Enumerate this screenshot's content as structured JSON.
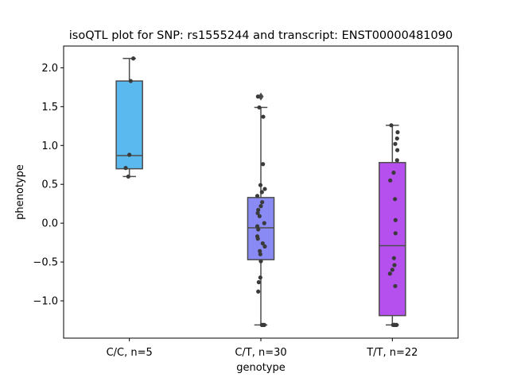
{
  "chart_data": {
    "type": "box",
    "title": "isoQTL plot for SNP: rs1555244 and transcript: ENST00000481090",
    "xlabel": "genotype",
    "ylabel": "phenotype",
    "ylim": [
      -1.48,
      2.28
    ],
    "yticks": [
      -1.0,
      -0.5,
      0.0,
      0.5,
      1.0,
      1.5,
      2.0
    ],
    "ytick_labels": [
      "−1.0",
      "−0.5",
      "0.0",
      "0.5",
      "1.0",
      "1.5",
      "2.0"
    ],
    "categories": [
      "C/C, n=5",
      "C/T, n=30",
      "T/T, n=22"
    ],
    "boxes": [
      {
        "name": "C/C, n=5",
        "color": "#5ab9ee",
        "q1": 0.7,
        "median": 0.87,
        "q3": 1.83,
        "whisker_low": 0.6,
        "whisker_high": 2.12,
        "outliers": []
      },
      {
        "name": "C/T, n=30",
        "color": "#8a8af5",
        "q1": -0.47,
        "median": -0.06,
        "q3": 0.33,
        "whisker_low": -1.31,
        "whisker_high": 1.49,
        "outliers": [
          1.63
        ]
      },
      {
        "name": "T/T, n=22",
        "color": "#b550ee",
        "q1": -1.19,
        "median": -0.29,
        "q3": 0.78,
        "whisker_low": -1.31,
        "whisker_high": 1.26,
        "outliers": []
      }
    ],
    "points": [
      [
        {
          "dx": 0.3,
          "y": 2.12
        },
        {
          "dx": 0.1,
          "y": 1.83
        },
        {
          "dx": 0.0,
          "y": 0.88
        },
        {
          "dx": -0.28,
          "y": 0.71
        },
        {
          "dx": -0.08,
          "y": 0.6
        }
      ],
      [
        {
          "dx": -0.22,
          "y": 1.63
        },
        {
          "dx": -0.12,
          "y": 1.49
        },
        {
          "dx": 0.18,
          "y": 1.37
        },
        {
          "dx": 0.16,
          "y": 0.76
        },
        {
          "dx": -0.03,
          "y": 0.49
        },
        {
          "dx": 0.3,
          "y": 0.44
        },
        {
          "dx": 0.08,
          "y": 0.4
        },
        {
          "dx": -0.27,
          "y": 0.35
        },
        {
          "dx": 0.1,
          "y": 0.27
        },
        {
          "dx": 0.0,
          "y": 0.22
        },
        {
          "dx": -0.2,
          "y": 0.17
        },
        {
          "dx": -0.24,
          "y": 0.13
        },
        {
          "dx": -0.1,
          "y": 0.09
        },
        {
          "dx": 0.26,
          "y": 0.0
        },
        {
          "dx": -0.27,
          "y": -0.04
        },
        {
          "dx": -0.2,
          "y": -0.08
        },
        {
          "dx": -0.27,
          "y": -0.17
        },
        {
          "dx": -0.23,
          "y": -0.2
        },
        {
          "dx": 0.14,
          "y": -0.26
        },
        {
          "dx": 0.3,
          "y": -0.3
        },
        {
          "dx": -0.08,
          "y": -0.36
        },
        {
          "dx": -0.04,
          "y": -0.4
        },
        {
          "dx": 0.0,
          "y": -0.49
        },
        {
          "dx": -0.04,
          "y": -0.7
        },
        {
          "dx": -0.16,
          "y": -0.76
        },
        {
          "dx": -0.2,
          "y": -0.88
        },
        {
          "dx": 0.1,
          "y": -1.31
        },
        {
          "dx": 0.2,
          "y": -1.31
        },
        {
          "dx": 0.26,
          "y": -1.31
        },
        {
          "dx": 0.08,
          "y": -1.31
        }
      ],
      [
        {
          "dx": -0.08,
          "y": 1.26
        },
        {
          "dx": 0.4,
          "y": 1.17
        },
        {
          "dx": 0.36,
          "y": 1.09
        },
        {
          "dx": 0.22,
          "y": 1.02
        },
        {
          "dx": 0.38,
          "y": 0.94
        },
        {
          "dx": 0.36,
          "y": 0.81
        },
        {
          "dx": 0.1,
          "y": 0.65
        },
        {
          "dx": -0.16,
          "y": 0.55
        },
        {
          "dx": 0.2,
          "y": 0.31
        },
        {
          "dx": 0.24,
          "y": 0.04
        },
        {
          "dx": 0.24,
          "y": -0.13
        },
        {
          "dx": 0.12,
          "y": -0.45
        },
        {
          "dx": 0.16,
          "y": -0.54
        },
        {
          "dx": 0.0,
          "y": -0.6
        },
        {
          "dx": -0.18,
          "y": -0.65
        },
        {
          "dx": 0.22,
          "y": -0.81
        },
        {
          "dx": 0.06,
          "y": -1.31
        },
        {
          "dx": 0.12,
          "y": -1.31
        },
        {
          "dx": 0.18,
          "y": -1.31
        },
        {
          "dx": 0.28,
          "y": -1.31
        },
        {
          "dx": 0.32,
          "y": -1.31
        },
        {
          "dx": 0.14,
          "y": -1.31
        }
      ]
    ],
    "grid": false,
    "legend": "none"
  }
}
